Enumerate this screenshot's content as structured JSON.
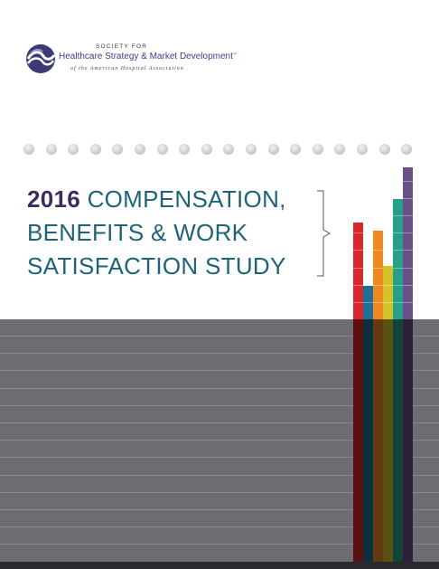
{
  "logo": {
    "icon": "swirl-logo-icon",
    "society_for": "SOCIETY FOR",
    "name": "Healthcare Strategy & Market Development",
    "tm": "™",
    "affiliation": "of the American Hospital Association"
  },
  "title": {
    "year": "2016",
    "line1_rest": " COMPENSATION,",
    "line2": "BENEFITS & WORK",
    "line3": "SATISFACTION STUDY"
  },
  "decor": {
    "dot_count": 18,
    "bars": [
      {
        "color": "#d8282c",
        "level": 0.86
      },
      {
        "color": "#1e6f98",
        "level": 0.7
      },
      {
        "color": "#ef8a22",
        "level": 0.84
      },
      {
        "color": "#d4c42a",
        "level": 0.75
      },
      {
        "color": "#27a08a",
        "level": 0.92
      },
      {
        "color": "#6b4f8a",
        "level": 1.0
      }
    ],
    "band_color": "#6c6c72"
  }
}
